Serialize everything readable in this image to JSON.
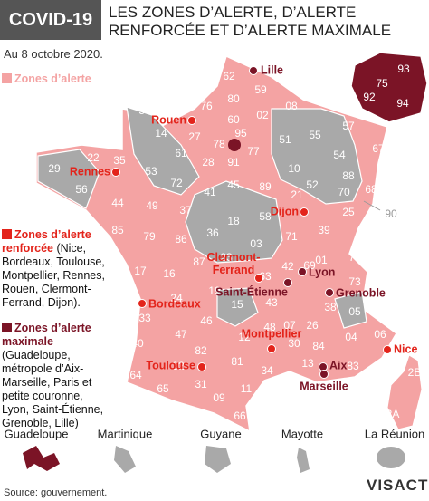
{
  "header": {
    "tag": "COVID-19",
    "title": "LES ZONES D’ALERTE, D’ALERTE RENFORCÉE ET D’ALERTE MAXIMALE"
  },
  "date": "Au 8 octobre 2020.",
  "legend": [
    {
      "title": "Zones d’alerte",
      "color": "#f4a3a3"
    },
    {
      "title": "Zones d’alerte renforcée",
      "detail": "(Nice, Bordeaux, Toulouse, Montpellier, Rennes, Rouen, Clermont-Ferrand, Dijon).",
      "color": "#e3241b"
    },
    {
      "title": "Zones d’alerte maximale",
      "detail": "(Guadeloupe, métropole d’Aix-Marseille, Paris et petite couronne, Lyon, Saint-Étienne, Grenoble, Lille)",
      "color": "#7b1426"
    }
  ],
  "cities": [
    {
      "name": "Lille",
      "color": "#7b1426"
    },
    {
      "name": "Rouen",
      "color": "#e3241b"
    },
    {
      "name": "Rennes",
      "color": "#e3241b"
    },
    {
      "name": "Dijon",
      "color": "#e3241b"
    },
    {
      "name": "Clermont-Ferrand",
      "color": "#e3241b"
    },
    {
      "name": "Lyon",
      "color": "#7b1426"
    },
    {
      "name": "Saint-Étienne",
      "color": "#7b1426"
    },
    {
      "name": "Grenoble",
      "color": "#7b1426"
    },
    {
      "name": "Bordeaux",
      "color": "#e3241b"
    },
    {
      "name": "Toulouse",
      "color": "#e3241b"
    },
    {
      "name": "Montpellier",
      "color": "#e3241b"
    },
    {
      "name": "Nice",
      "color": "#e3241b"
    },
    {
      "name": "Aix",
      "color": "#7b1426"
    },
    {
      "name": "Marseille",
      "color": "#7b1426"
    }
  ],
  "departments": [
    "62",
    "59",
    "80",
    "76",
    "02",
    "08",
    "50",
    "14",
    "27",
    "60",
    "95",
    "78",
    "91",
    "77",
    "51",
    "55",
    "57",
    "54",
    "67",
    "29",
    "22",
    "35",
    "53",
    "61",
    "28",
    "72",
    "45",
    "89",
    "10",
    "52",
    "88",
    "68",
    "56",
    "44",
    "49",
    "37",
    "41",
    "18",
    "58",
    "21",
    "70",
    "25",
    "85",
    "79",
    "86",
    "36",
    "71",
    "39",
    "17",
    "16",
    "87",
    "23",
    "03",
    "01",
    "74",
    "24",
    "19",
    "63",
    "42",
    "69",
    "73",
    "38",
    "33",
    "15",
    "43",
    "07",
    "26",
    "05",
    "46",
    "12",
    "48",
    "40",
    "47",
    "82",
    "81",
    "30",
    "84",
    "04",
    "06",
    "64",
    "32",
    "31",
    "34",
    "13",
    "83",
    "65",
    "09",
    "11",
    "66",
    "2B",
    "2A"
  ],
  "belfort": "90",
  "idf": [
    "93",
    "75",
    "92",
    "94"
  ],
  "overseas": [
    "Guadeloupe",
    "Martinique",
    "Guyane",
    "Mayotte",
    "La Réunion"
  ],
  "source": "Source: gouvernement.",
  "logo": "VISACTU"
}
